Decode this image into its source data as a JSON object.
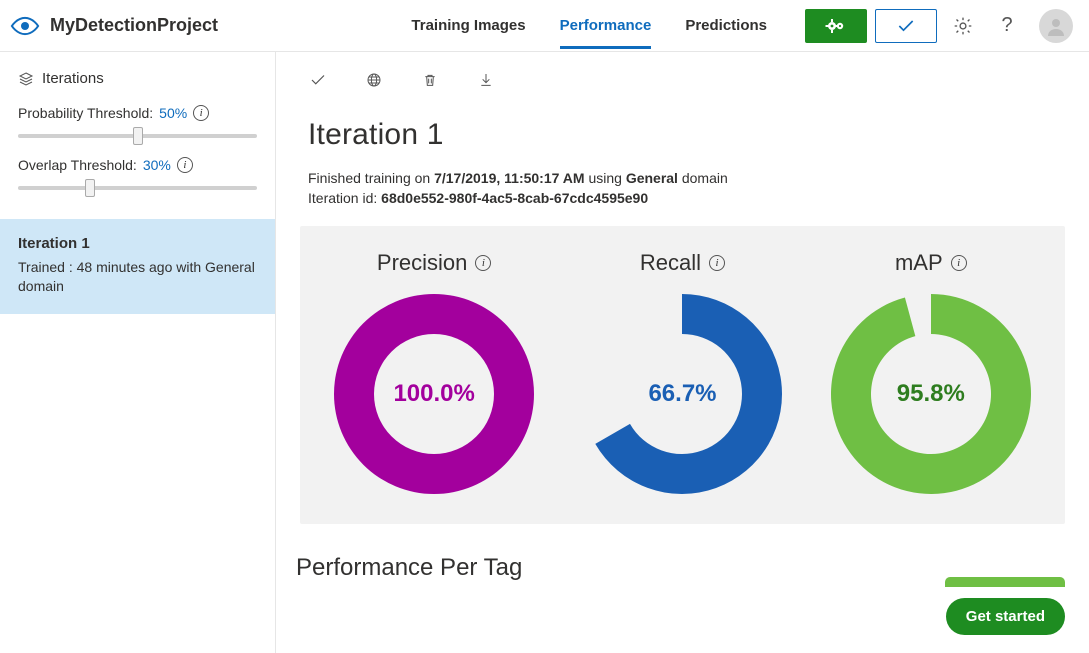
{
  "header": {
    "project_name": "MyDetectionProject",
    "tabs": [
      "Training Images",
      "Performance",
      "Predictions"
    ],
    "active_tab_index": 1
  },
  "sidebar": {
    "section_title": "Iterations",
    "prob_threshold_label": "Probability Threshold:",
    "prob_threshold_value": "50%",
    "prob_threshold_pos": 0.5,
    "overlap_threshold_label": "Overlap Threshold:",
    "overlap_threshold_value": "30%",
    "overlap_threshold_pos": 0.3,
    "iteration": {
      "title": "Iteration 1",
      "subtitle": "Trained : 48 minutes ago with General domain"
    }
  },
  "main": {
    "heading": "Iteration 1",
    "finished_prefix": "Finished training on ",
    "finished_time": "7/17/2019, 11:50:17 AM",
    "finished_mid": " using ",
    "finished_domain": "General",
    "finished_suffix": " domain",
    "iterid_label": "Iteration id: ",
    "iterid_value": "68d0e552-980f-4ac5-8cab-67cdc4595e90",
    "metrics": {
      "precision": {
        "label": "Precision",
        "value_text": "100.0%",
        "value": 1.0,
        "color": "#a3009d",
        "text_color": "#a3009d"
      },
      "recall": {
        "label": "Recall",
        "value_text": "66.7%",
        "value": 0.667,
        "color": "#1a5fb4",
        "text_color": "#1a5fb4"
      },
      "map": {
        "label": "mAP",
        "value_text": "95.8%",
        "value": 0.958,
        "color": "#6fbf44",
        "text_color": "#2e7d1f"
      },
      "donut": {
        "outer_radius": 100,
        "inner_radius": 60,
        "background": "#f2f2f2"
      }
    },
    "section2": "Performance Per Tag",
    "get_started": "Get started"
  },
  "colors": {
    "brand": "#0f6cbd",
    "green": "#1e8c21"
  }
}
